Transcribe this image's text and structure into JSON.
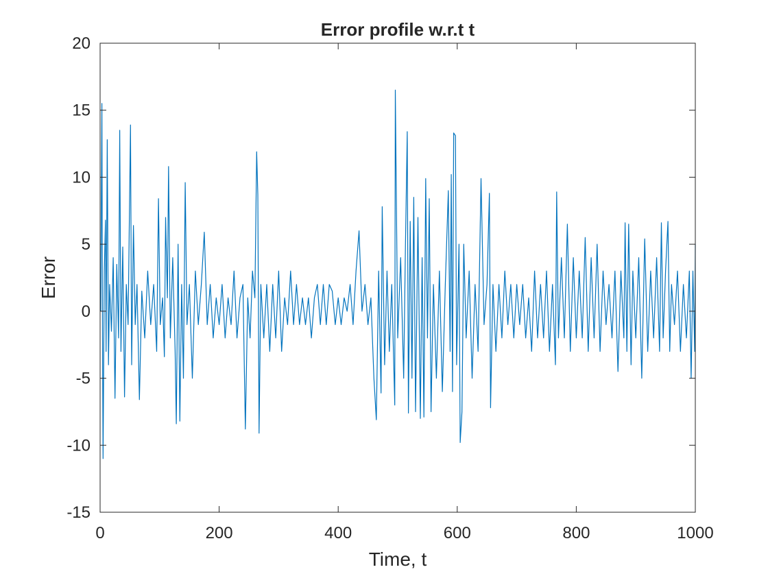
{
  "chart_data": {
    "type": "line",
    "title": "Error profile w.r.t t",
    "xlabel": "Time, t",
    "ylabel": "Error",
    "xlim": [
      0,
      1000
    ],
    "ylim": [
      -15,
      20
    ],
    "xticks": [
      0,
      200,
      400,
      600,
      800,
      1000
    ],
    "yticks": [
      -15,
      -10,
      -5,
      0,
      5,
      10,
      15,
      20
    ],
    "xtick_labels": [
      "0",
      "200",
      "400",
      "600",
      "800",
      "1000"
    ],
    "ytick_labels": [
      "-15",
      "-10",
      "-5",
      "0",
      "5",
      "10",
      "15",
      "20"
    ],
    "grid": false,
    "box": true,
    "line_color": "#0072BD",
    "axis_color": "#262626",
    "series": [
      {
        "x_start": 1,
        "x_step": 1,
        "points": 1000,
        "sampled_points": [
          [
            1,
            0
          ],
          [
            3,
            15.5
          ],
          [
            4,
            -2
          ],
          [
            5,
            -11
          ],
          [
            7,
            3
          ],
          [
            9,
            6.8
          ],
          [
            10,
            -3
          ],
          [
            12,
            12.8
          ],
          [
            14,
            -4
          ],
          [
            16,
            2
          ],
          [
            19,
            -1.5
          ],
          [
            22,
            4
          ],
          [
            25,
            -6.5
          ],
          [
            28,
            3.5
          ],
          [
            31,
            -2
          ],
          [
            33,
            13.5
          ],
          [
            35,
            -3
          ],
          [
            38,
            4.8
          ],
          [
            41,
            -6.4
          ],
          [
            44,
            2
          ],
          [
            47,
            -1
          ],
          [
            51,
            13.9
          ],
          [
            53,
            -4
          ],
          [
            56,
            6.4
          ],
          [
            59,
            -1
          ],
          [
            62,
            2
          ],
          [
            66,
            -6.6
          ],
          [
            70,
            1.5
          ],
          [
            75,
            -2
          ],
          [
            80,
            3
          ],
          [
            85,
            -1
          ],
          [
            90,
            2
          ],
          [
            95,
            -3
          ],
          [
            98,
            8.4
          ],
          [
            101,
            -1
          ],
          [
            105,
            1
          ],
          [
            108,
            -3.4
          ],
          [
            110,
            7
          ],
          [
            113,
            1
          ],
          [
            115,
            10.8
          ],
          [
            118,
            -2
          ],
          [
            122,
            4
          ],
          [
            126,
            -3
          ],
          [
            128,
            -8.4
          ],
          [
            131,
            5
          ],
          [
            134,
            -8.2
          ],
          [
            137,
            2
          ],
          [
            140,
            -5
          ],
          [
            143,
            9.6
          ],
          [
            146,
            -1
          ],
          [
            150,
            2
          ],
          [
            155,
            -5
          ],
          [
            160,
            3
          ],
          [
            165,
            -1
          ],
          [
            170,
            2
          ],
          [
            175,
            5.9
          ],
          [
            180,
            -1
          ],
          [
            185,
            2
          ],
          [
            190,
            -2
          ],
          [
            195,
            1
          ],
          [
            200,
            -1
          ],
          [
            205,
            2
          ],
          [
            210,
            -2
          ],
          [
            215,
            1
          ],
          [
            220,
            -1
          ],
          [
            225,
            3
          ],
          [
            230,
            -2
          ],
          [
            235,
            1
          ],
          [
            240,
            2
          ],
          [
            244,
            -8.8
          ],
          [
            248,
            1
          ],
          [
            252,
            -2
          ],
          [
            256,
            3
          ],
          [
            260,
            1
          ],
          [
            263,
            11.9
          ],
          [
            265,
            8.7
          ],
          [
            267,
            -9.1
          ],
          [
            270,
            2
          ],
          [
            275,
            -2
          ],
          [
            280,
            2
          ],
          [
            285,
            -3
          ],
          [
            290,
            2
          ],
          [
            295,
            -2
          ],
          [
            300,
            3
          ],
          [
            305,
            -3
          ],
          [
            310,
            1
          ],
          [
            315,
            -1
          ],
          [
            320,
            3
          ],
          [
            325,
            -1
          ],
          [
            330,
            2
          ],
          [
            335,
            -1
          ],
          [
            340,
            1
          ],
          [
            345,
            -1
          ],
          [
            350,
            1
          ],
          [
            355,
            -2
          ],
          [
            360,
            1
          ],
          [
            365,
            2
          ],
          [
            370,
            -1
          ],
          [
            375,
            2
          ],
          [
            380,
            -1
          ],
          [
            385,
            2
          ],
          [
            390,
            1.5
          ],
          [
            395,
            -1
          ],
          [
            400,
            1
          ],
          [
            405,
            -1
          ],
          [
            410,
            1
          ],
          [
            415,
            0
          ],
          [
            420,
            2
          ],
          [
            425,
            -1
          ],
          [
            430,
            3
          ],
          [
            435,
            6
          ],
          [
            440,
            0
          ],
          [
            445,
            2
          ],
          [
            450,
            -1
          ],
          [
            455,
            1
          ],
          [
            460,
            -5
          ],
          [
            464,
            -8.1
          ],
          [
            468,
            3
          ],
          [
            472,
            -6.1
          ],
          [
            474,
            7.8
          ],
          [
            478,
            -4
          ],
          [
            482,
            3
          ],
          [
            486,
            -3
          ],
          [
            490,
            2
          ],
          [
            495,
            -7
          ],
          [
            496,
            16.5
          ],
          [
            500,
            -2
          ],
          [
            505,
            4
          ],
          [
            510,
            -5
          ],
          [
            513,
            5
          ],
          [
            516,
            13.4
          ],
          [
            518,
            -7.6
          ],
          [
            521,
            6.7
          ],
          [
            524,
            -5
          ],
          [
            527,
            8.5
          ],
          [
            530,
            -7.5
          ],
          [
            534,
            7
          ],
          [
            538,
            -8
          ],
          [
            541,
            4
          ],
          [
            544,
            -7.9
          ],
          [
            547,
            9.9
          ],
          [
            550,
            -2
          ],
          [
            553,
            8.4
          ],
          [
            556,
            -7.5
          ],
          [
            560,
            2
          ],
          [
            565,
            -5
          ],
          [
            570,
            3
          ],
          [
            575,
            -6
          ],
          [
            580,
            2
          ],
          [
            585,
            9
          ],
          [
            588,
            -3
          ],
          [
            590,
            10.2
          ],
          [
            592,
            -6
          ],
          [
            594,
            13.3
          ],
          [
            597,
            13.1
          ],
          [
            599,
            -4
          ],
          [
            603,
            5
          ],
          [
            605,
            -9.8
          ],
          [
            608,
            -7.5
          ],
          [
            611,
            5
          ],
          [
            615,
            -2
          ],
          [
            620,
            3
          ],
          [
            625,
            -5
          ],
          [
            630,
            2
          ],
          [
            635,
            -3
          ],
          [
            640,
            9.9
          ],
          [
            645,
            -1
          ],
          [
            650,
            2
          ],
          [
            654,
            8.8
          ],
          [
            656,
            -7.2
          ],
          [
            660,
            2
          ],
          [
            665,
            -3
          ],
          [
            670,
            2
          ],
          [
            675,
            -2
          ],
          [
            680,
            3
          ],
          [
            685,
            -1
          ],
          [
            690,
            2
          ],
          [
            695,
            -2
          ],
          [
            700,
            2
          ],
          [
            705,
            -1
          ],
          [
            710,
            2
          ],
          [
            715,
            -2
          ],
          [
            720,
            1
          ],
          [
            725,
            -3
          ],
          [
            730,
            3
          ],
          [
            735,
            -2
          ],
          [
            740,
            2
          ],
          [
            745,
            -2
          ],
          [
            750,
            3
          ],
          [
            755,
            -3
          ],
          [
            760,
            2
          ],
          [
            765,
            -4
          ],
          [
            767,
            8.9
          ],
          [
            770,
            -2
          ],
          [
            775,
            4
          ],
          [
            780,
            -2
          ],
          [
            785,
            6.5
          ],
          [
            790,
            -3
          ],
          [
            795,
            4
          ],
          [
            800,
            -2
          ],
          [
            805,
            3
          ],
          [
            810,
            -2
          ],
          [
            815,
            5.5
          ],
          [
            820,
            -3
          ],
          [
            825,
            4
          ],
          [
            830,
            -2
          ],
          [
            835,
            5
          ],
          [
            840,
            -3
          ],
          [
            845,
            3
          ],
          [
            850,
            -1
          ],
          [
            855,
            2
          ],
          [
            860,
            -2
          ],
          [
            865,
            3
          ],
          [
            870,
            -4.5
          ],
          [
            875,
            3
          ],
          [
            880,
            -2
          ],
          [
            882,
            6.6
          ],
          [
            885,
            -3
          ],
          [
            888,
            6.5
          ],
          [
            892,
            -4
          ],
          [
            895,
            3
          ],
          [
            900,
            -2
          ],
          [
            905,
            4
          ],
          [
            910,
            -5
          ],
          [
            915,
            5.4
          ],
          [
            920,
            -3
          ],
          [
            925,
            3
          ],
          [
            930,
            -2
          ],
          [
            935,
            4
          ],
          [
            940,
            -3
          ],
          [
            943,
            6.6
          ],
          [
            946,
            -2
          ],
          [
            950,
            3
          ],
          [
            954,
            6.7
          ],
          [
            957,
            -3
          ],
          [
            960,
            2
          ],
          [
            965,
            -1
          ],
          [
            970,
            3
          ],
          [
            975,
            -3
          ],
          [
            980,
            2
          ],
          [
            985,
            -2
          ],
          [
            990,
            3
          ],
          [
            993,
            -5
          ],
          [
            996,
            3
          ],
          [
            999,
            -3
          ],
          [
            1000,
            5
          ]
        ]
      }
    ]
  }
}
